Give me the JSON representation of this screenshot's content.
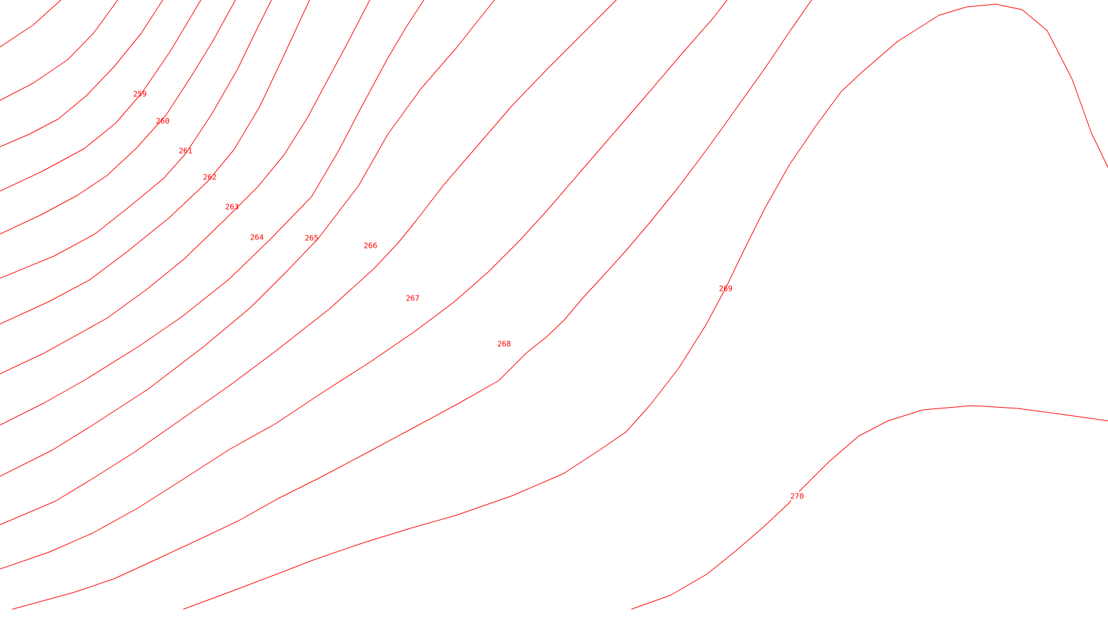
{
  "map": {
    "type": "contour-map",
    "line_color": "#ff0000",
    "background": "#ffffff",
    "contours": [
      {
        "level": "259",
        "label": "259"
      },
      {
        "level": "260",
        "label": "260"
      },
      {
        "level": "261",
        "label": "261"
      },
      {
        "level": "262",
        "label": "262"
      },
      {
        "level": "263",
        "label": "263"
      },
      {
        "level": "264",
        "label": "264"
      },
      {
        "level": "265",
        "label": "265"
      },
      {
        "level": "266",
        "label": "266"
      },
      {
        "level": "267",
        "label": "267"
      },
      {
        "level": "268",
        "label": "268"
      },
      {
        "level": "269",
        "label": "269"
      },
      {
        "level": "270",
        "label": "270"
      }
    ]
  }
}
